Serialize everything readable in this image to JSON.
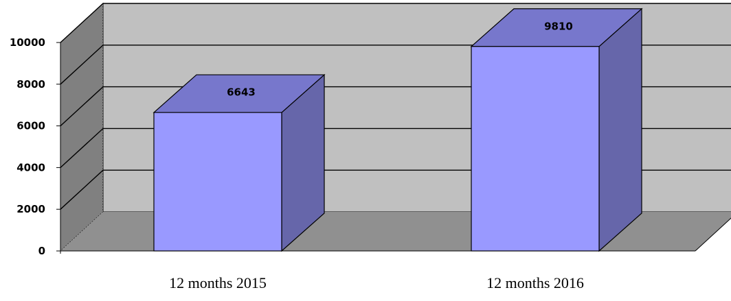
{
  "chart_data": {
    "type": "bar",
    "categories": [
      "12 months 2015",
      "12 months 2016"
    ],
    "values": [
      6643,
      9810
    ],
    "data_labels": [
      "6643",
      "9810"
    ],
    "yticks": [
      0,
      2000,
      4000,
      6000,
      8000,
      10000
    ],
    "ytick_labels": [
      "0",
      "2000",
      "4000",
      "6000",
      "8000",
      "10000"
    ],
    "ylim": [
      0,
      10000
    ],
    "title": "",
    "xlabel": "",
    "ylabel": "",
    "grid": true,
    "legend": "none",
    "style": "3d-column",
    "colors": {
      "bar_front": "#9999ff",
      "bar_top": "#7777cc",
      "bar_side": "#6666aa",
      "back_wall": "#c0c0c0",
      "side_wall": "#808080",
      "floor": "#909090",
      "gridline": "#000000"
    }
  }
}
